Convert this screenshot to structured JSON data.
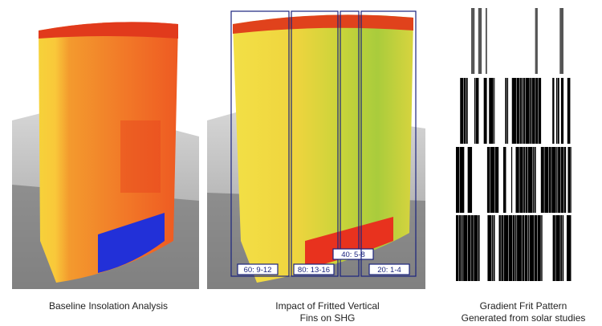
{
  "panels": [
    {
      "caption": [
        "Baseline Insolation Analysis"
      ]
    },
    {
      "caption": [
        "Impact of Fritted Vertical",
        "Fins on SHG"
      ],
      "zones": [
        "60: 9-12",
        "80: 13-16",
        "40: 5-8",
        "20: 1-4"
      ]
    },
    {
      "caption": [
        "Gradient Frit Pattern",
        "Generated from solar studies"
      ]
    }
  ]
}
